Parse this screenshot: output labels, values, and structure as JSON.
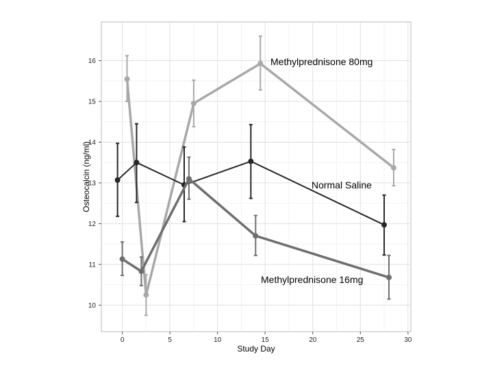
{
  "chart_data": {
    "type": "line",
    "title": "",
    "xlabel": "Study Day",
    "ylabel": "Osteocalcin (ng/ml)",
    "xlim": [
      -2.2,
      30.3
    ],
    "ylim": [
      9.35,
      16.95
    ],
    "xticks": [
      0,
      5,
      10,
      15,
      20,
      25,
      30
    ],
    "yticks": [
      10,
      11,
      12,
      13,
      14,
      15,
      16
    ],
    "grid": true,
    "legend": "direct-labels",
    "series": [
      {
        "name": "Methylprednisone 80mg",
        "label": "Methylprednisone 80mg",
        "color": "#a8a8a8",
        "stroke_width": 3.5,
        "x": [
          0.5,
          2.5,
          7.5,
          14.5,
          28.5
        ],
        "y": [
          15.55,
          10.25,
          14.95,
          15.93,
          13.37
        ],
        "lower": [
          15.0,
          9.75,
          14.38,
          15.28,
          12.93
        ],
        "upper": [
          16.12,
          10.75,
          15.52,
          16.6,
          13.82
        ]
      },
      {
        "name": "Normal Saline",
        "label": "Normal Saline",
        "color": "#262626",
        "stroke_width": 2,
        "x": [
          -0.5,
          1.5,
          6.5,
          13.5,
          27.5
        ],
        "y": [
          13.07,
          13.5,
          12.95,
          13.53,
          11.97
        ],
        "lower": [
          12.18,
          12.52,
          12.05,
          12.62,
          11.23
        ],
        "upper": [
          13.97,
          14.45,
          13.88,
          14.43,
          12.7
        ]
      },
      {
        "name": "Methylprednisone 16mg",
        "label": "Methylprednisone 16mg",
        "color": "#6e6e6e",
        "stroke_width": 3.5,
        "x": [
          0,
          2,
          7,
          14,
          28
        ],
        "y": [
          11.13,
          10.83,
          13.1,
          11.7,
          10.68
        ],
        "lower": [
          10.73,
          10.48,
          12.6,
          11.22,
          10.15
        ],
        "upper": [
          11.55,
          11.18,
          13.63,
          12.2,
          11.22
        ]
      }
    ]
  }
}
